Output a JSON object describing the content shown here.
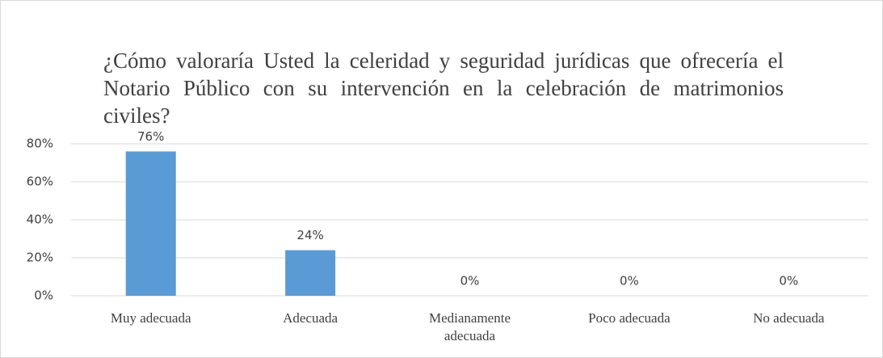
{
  "chart_data": {
    "type": "bar",
    "title": "¿Cómo valoraría Usted la celeridad y seguridad jurídicas que ofrecería el Notario Público con su intervención en la celebración de matrimonios civiles?",
    "categories": [
      "Muy adecuada",
      "Adecuada",
      "Medianamente adecuada",
      "Poco adecuada",
      "No adecuada"
    ],
    "values": [
      76,
      24,
      0,
      0,
      0
    ],
    "value_labels": [
      "76%",
      "24%",
      "0%",
      "0%",
      "0%"
    ],
    "color": "#5b9bd5",
    "ylim": [
      0,
      80
    ],
    "yticks": [
      {
        "value": 0,
        "label": "0%"
      },
      {
        "value": 20,
        "label": "20%"
      },
      {
        "value": 40,
        "label": "40%"
      },
      {
        "value": 60,
        "label": "60%"
      },
      {
        "value": 80,
        "label": "80%"
      }
    ],
    "grid": true
  }
}
